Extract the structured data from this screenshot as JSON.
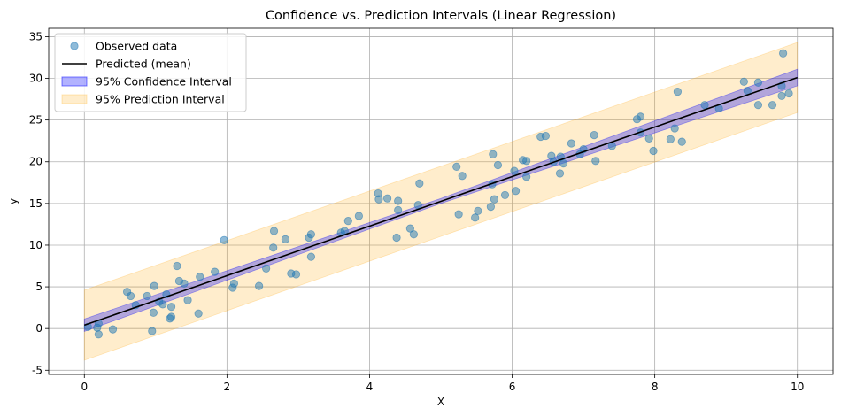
{
  "chart_data": {
    "type": "scatter",
    "title": "Confidence vs. Prediction Intervals (Linear Regression)",
    "xlabel": "X",
    "ylabel": "y",
    "xlim": [
      -0.5,
      10.5
    ],
    "ylim": [
      -5.5,
      36
    ],
    "xticks": [
      0,
      2,
      4,
      6,
      8,
      10
    ],
    "yticks": [
      -5,
      0,
      5,
      10,
      15,
      20,
      25,
      30,
      35
    ],
    "grid": true,
    "legend_position": "top-left",
    "colors": {
      "points": "#1f77b4",
      "prediction_line": "#000000",
      "confidence_band": "#0000ff",
      "prediction_band": "#ffa500",
      "grid": "#b0b0b0"
    },
    "series": [
      {
        "name": "Observed data",
        "kind": "scatter",
        "points": [
          [
            0.05,
            0.2
          ],
          [
            0.18,
            0.1
          ],
          [
            0.2,
            0.6
          ],
          [
            0.2,
            -0.7
          ],
          [
            0.4,
            -0.1
          ],
          [
            0.6,
            4.4
          ],
          [
            0.65,
            3.9
          ],
          [
            0.72,
            2.8
          ],
          [
            0.88,
            3.9
          ],
          [
            0.95,
            -0.3
          ],
          [
            0.97,
            1.9
          ],
          [
            0.98,
            5.1
          ],
          [
            1.05,
            3.2
          ],
          [
            1.1,
            2.9
          ],
          [
            1.15,
            4.1
          ],
          [
            1.2,
            1.2
          ],
          [
            1.22,
            1.4
          ],
          [
            1.22,
            2.6
          ],
          [
            1.3,
            7.5
          ],
          [
            1.33,
            5.7
          ],
          [
            1.4,
            5.4
          ],
          [
            1.45,
            3.4
          ],
          [
            1.6,
            1.8
          ],
          [
            1.62,
            6.2
          ],
          [
            1.83,
            6.8
          ],
          [
            1.96,
            10.6
          ],
          [
            2.08,
            4.9
          ],
          [
            2.1,
            5.4
          ],
          [
            2.45,
            5.1
          ],
          [
            2.55,
            7.2
          ],
          [
            2.65,
            9.7
          ],
          [
            2.66,
            11.7
          ],
          [
            2.82,
            10.7
          ],
          [
            2.9,
            6.6
          ],
          [
            2.97,
            6.5
          ],
          [
            3.15,
            10.9
          ],
          [
            3.18,
            11.3
          ],
          [
            3.18,
            8.6
          ],
          [
            3.6,
            11.5
          ],
          [
            3.65,
            11.7
          ],
          [
            3.7,
            12.9
          ],
          [
            3.85,
            13.5
          ],
          [
            4.12,
            16.2
          ],
          [
            4.13,
            15.5
          ],
          [
            4.25,
            15.6
          ],
          [
            4.38,
            10.9
          ],
          [
            4.4,
            15.3
          ],
          [
            4.4,
            14.2
          ],
          [
            4.57,
            12.0
          ],
          [
            4.62,
            11.3
          ],
          [
            4.68,
            14.8
          ],
          [
            4.7,
            17.4
          ],
          [
            5.22,
            19.4
          ],
          [
            5.25,
            13.7
          ],
          [
            5.3,
            18.3
          ],
          [
            5.48,
            13.3
          ],
          [
            5.52,
            14.1
          ],
          [
            5.7,
            14.6
          ],
          [
            5.72,
            17.3
          ],
          [
            5.73,
            20.9
          ],
          [
            5.75,
            15.5
          ],
          [
            5.8,
            19.6
          ],
          [
            5.9,
            16.0
          ],
          [
            6.03,
            18.9
          ],
          [
            6.05,
            16.5
          ],
          [
            6.15,
            20.2
          ],
          [
            6.2,
            20.1
          ],
          [
            6.2,
            18.2
          ],
          [
            6.4,
            23.0
          ],
          [
            6.47,
            23.1
          ],
          [
            6.55,
            20.7
          ],
          [
            6.58,
            20.0
          ],
          [
            6.67,
            18.6
          ],
          [
            6.68,
            20.6
          ],
          [
            6.72,
            19.8
          ],
          [
            6.83,
            22.2
          ],
          [
            6.95,
            20.9
          ],
          [
            7.0,
            21.5
          ],
          [
            7.15,
            23.2
          ],
          [
            7.17,
            20.1
          ],
          [
            7.4,
            21.9
          ],
          [
            7.75,
            25.1
          ],
          [
            7.8,
            25.4
          ],
          [
            7.8,
            23.5
          ],
          [
            7.92,
            22.8
          ],
          [
            7.98,
            21.3
          ],
          [
            8.22,
            22.7
          ],
          [
            8.28,
            24.0
          ],
          [
            8.32,
            28.4
          ],
          [
            8.38,
            22.4
          ],
          [
            8.7,
            26.8
          ],
          [
            8.9,
            26.4
          ],
          [
            9.25,
            29.6
          ],
          [
            9.3,
            28.5
          ],
          [
            9.45,
            29.5
          ],
          [
            9.45,
            26.8
          ],
          [
            9.65,
            26.8
          ],
          [
            9.78,
            27.9
          ],
          [
            9.78,
            29.1
          ],
          [
            9.8,
            33.0
          ],
          [
            9.88,
            28.2
          ]
        ]
      },
      {
        "name": "Predicted (mean)",
        "kind": "line",
        "x": [
          0,
          10
        ],
        "y": [
          0.4,
          30.1
        ]
      },
      {
        "name": "95% Confidence Interval",
        "kind": "band",
        "x": [
          0,
          5,
          10
        ],
        "lower": [
          -0.35,
          15.0,
          29.1
        ],
        "upper": [
          1.15,
          15.6,
          31.1
        ]
      },
      {
        "name": "95% Prediction Interval",
        "kind": "band",
        "x": [
          0,
          10
        ],
        "lower": [
          -3.8,
          25.9
        ],
        "upper": [
          4.6,
          34.3
        ]
      }
    ]
  }
}
